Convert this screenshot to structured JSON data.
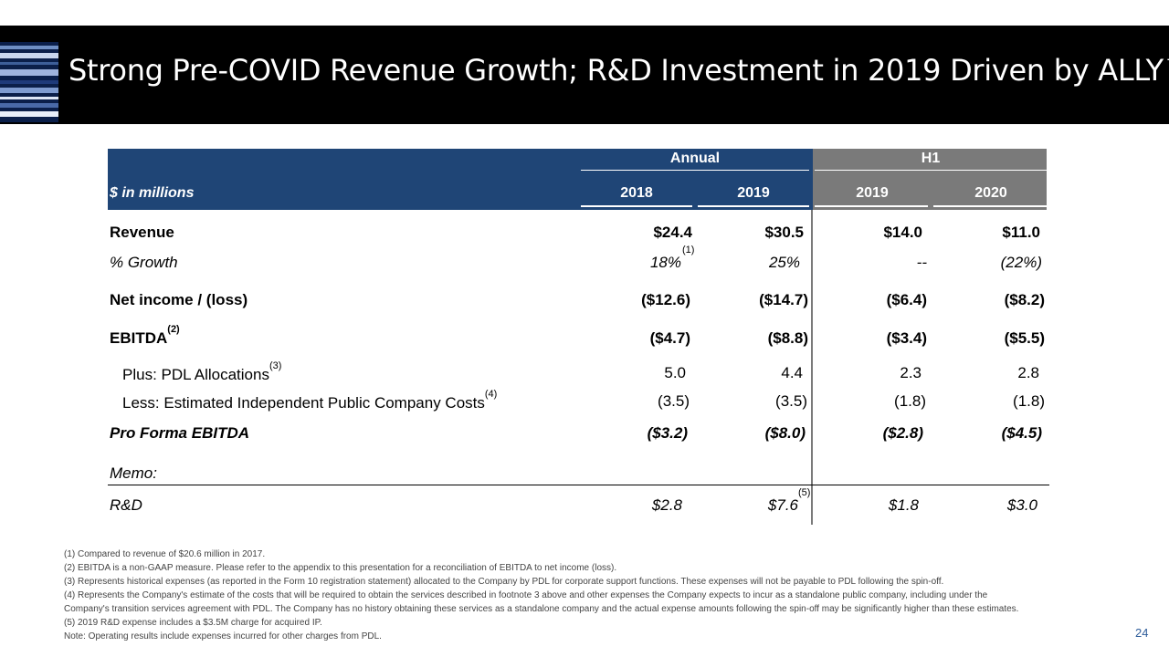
{
  "title": "Strong Pre-COVID Revenue Growth; R&D Investment in 2019 Driven by ALLY™",
  "table": {
    "units_label": "$ in millions",
    "group_annual": "Annual",
    "group_h1": "H1",
    "columns": [
      "2018",
      "2019",
      "2019",
      "2020"
    ],
    "rows": {
      "revenue": {
        "label": "Revenue",
        "values": [
          "$24.4",
          "$30.5",
          "$14.0",
          "$11.0"
        ]
      },
      "growth": {
        "label": "% Growth",
        "values": [
          "18%",
          "25%",
          "--",
          "(22%)"
        ],
        "sup": "(1)"
      },
      "net_income": {
        "label": "Net income / (loss)",
        "values": [
          "($12.6)",
          "($14.7)",
          "($6.4)",
          "($8.2)"
        ]
      },
      "ebitda": {
        "label": "EBITDA",
        "sup": "(2)",
        "values": [
          "($4.7)",
          "($8.8)",
          "($3.4)",
          "($5.5)"
        ]
      },
      "plus_pdl": {
        "label": "Plus: PDL Allocations",
        "sup": "(3)",
        "values": [
          "5.0",
          "4.4",
          "2.3",
          "2.8"
        ]
      },
      "less_costs": {
        "label": "Less: Estimated Independent Public Company Costs",
        "sup": "(4)",
        "values": [
          "(3.5)",
          "(3.5)",
          "(1.8)",
          "(1.8)"
        ]
      },
      "pro_forma": {
        "label": "Pro Forma EBITDA",
        "values": [
          "($3.2)",
          "($8.0)",
          "($2.8)",
          "($4.5)"
        ]
      },
      "memo": {
        "label": "Memo:"
      },
      "rd": {
        "label": "R&D",
        "sup": "(5)",
        "values": [
          "$2.8",
          "$7.6",
          "$1.8",
          "$3.0"
        ]
      }
    }
  },
  "footnotes": [
    "(1) Compared to revenue of $20.6 million in 2017.",
    "(2) EBITDA is a non-GAAP measure. Please refer to the appendix to this presentation for a reconciliation of EBITDA to net income (loss).",
    "(3) Represents historical expenses (as reported in the Form 10 registration statement) allocated to the Company by PDL for corporate support functions. These expenses will not be payable to PDL following the spin-off.",
    "(4) Represents the Company's estimate of the costs that will be required to obtain the services described in footnote 3 above and other expenses the Company expects to incur as a standalone public company, including under the",
    "Company's transition services agreement with PDL. The Company has no history obtaining these services as a standalone company and the actual expense amounts following the spin-off may be significantly higher than these estimates.",
    "(5) 2019 R&D expense includes a $3.5M charge for acquired IP.",
    "Note: Operating results include expenses incurred for other charges from PDL."
  ],
  "page_number": "24"
}
